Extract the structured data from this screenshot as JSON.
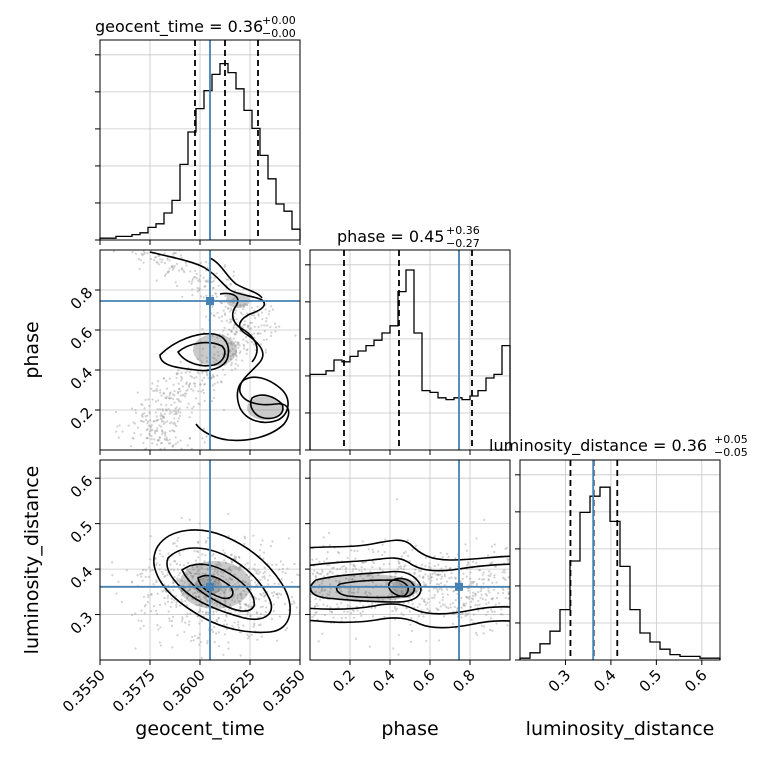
{
  "chart_data": {
    "type": "corner",
    "params": [
      "geocent_time",
      "phase",
      "luminosity_distance"
    ],
    "truths": [
      0.3605,
      0.745,
      0.361
    ],
    "truth_color": "#4682b4",
    "hist_color": "#000000",
    "titles": [
      {
        "name": "geocent_time",
        "median": "0.36",
        "plus": "+0.00",
        "minus": "−0.00"
      },
      {
        "name": "phase",
        "median": "0.45",
        "plus": "+0.36",
        "minus": "−0.27"
      },
      {
        "name": "luminosity_distance",
        "median": "0.36",
        "plus": "+0.05",
        "minus": "−0.05"
      }
    ],
    "ranges": [
      [
        0.355,
        0.365
      ],
      [
        0.0,
        1.0
      ],
      [
        0.2,
        0.64
      ]
    ],
    "ticks": [
      {
        "values": [
          0.355,
          0.3575,
          0.36,
          0.3625,
          0.365
        ],
        "labels": [
          "0.3550",
          "0.3575",
          "0.3600",
          "0.3625",
          "0.3650"
        ]
      },
      {
        "values": [
          0.2,
          0.4,
          0.6,
          0.8
        ],
        "labels": [
          "0.2",
          "0.4",
          "0.6",
          "0.8"
        ]
      },
      {
        "values": [
          0.3,
          0.4,
          0.5,
          0.6
        ],
        "labels": [
          "0.3",
          "0.4",
          "0.5",
          "0.6"
        ]
      }
    ],
    "quantiles": [
      [
        0.35975,
        0.36125,
        0.3629
      ],
      [
        0.17,
        0.445,
        0.81
      ],
      [
        0.311,
        0.362,
        0.414
      ]
    ],
    "histograms": [
      [
        0.01,
        0.01,
        0.02,
        0.02,
        0.03,
        0.04,
        0.07,
        0.09,
        0.15,
        0.22,
        0.42,
        0.6,
        0.73,
        0.83,
        0.92,
        0.98,
        0.93,
        0.84,
        0.72,
        0.62,
        0.47,
        0.34,
        0.2,
        0.16,
        0.06
      ],
      [
        0.42,
        0.42,
        0.44,
        0.5,
        0.49,
        0.52,
        0.55,
        0.58,
        0.61,
        0.65,
        0.69,
        0.88,
        1.0,
        0.65,
        0.33,
        0.32,
        0.29,
        0.28,
        0.29,
        0.28,
        0.3,
        0.33,
        0.4,
        0.42,
        0.58
      ],
      [
        0.01,
        0.04,
        0.09,
        0.16,
        0.28,
        0.55,
        0.82,
        0.91,
        0.96,
        0.77,
        0.52,
        0.28,
        0.15,
        0.1,
        0.06,
        0.03,
        0.02,
        0.02,
        0.01,
        0.01
      ]
    ]
  }
}
